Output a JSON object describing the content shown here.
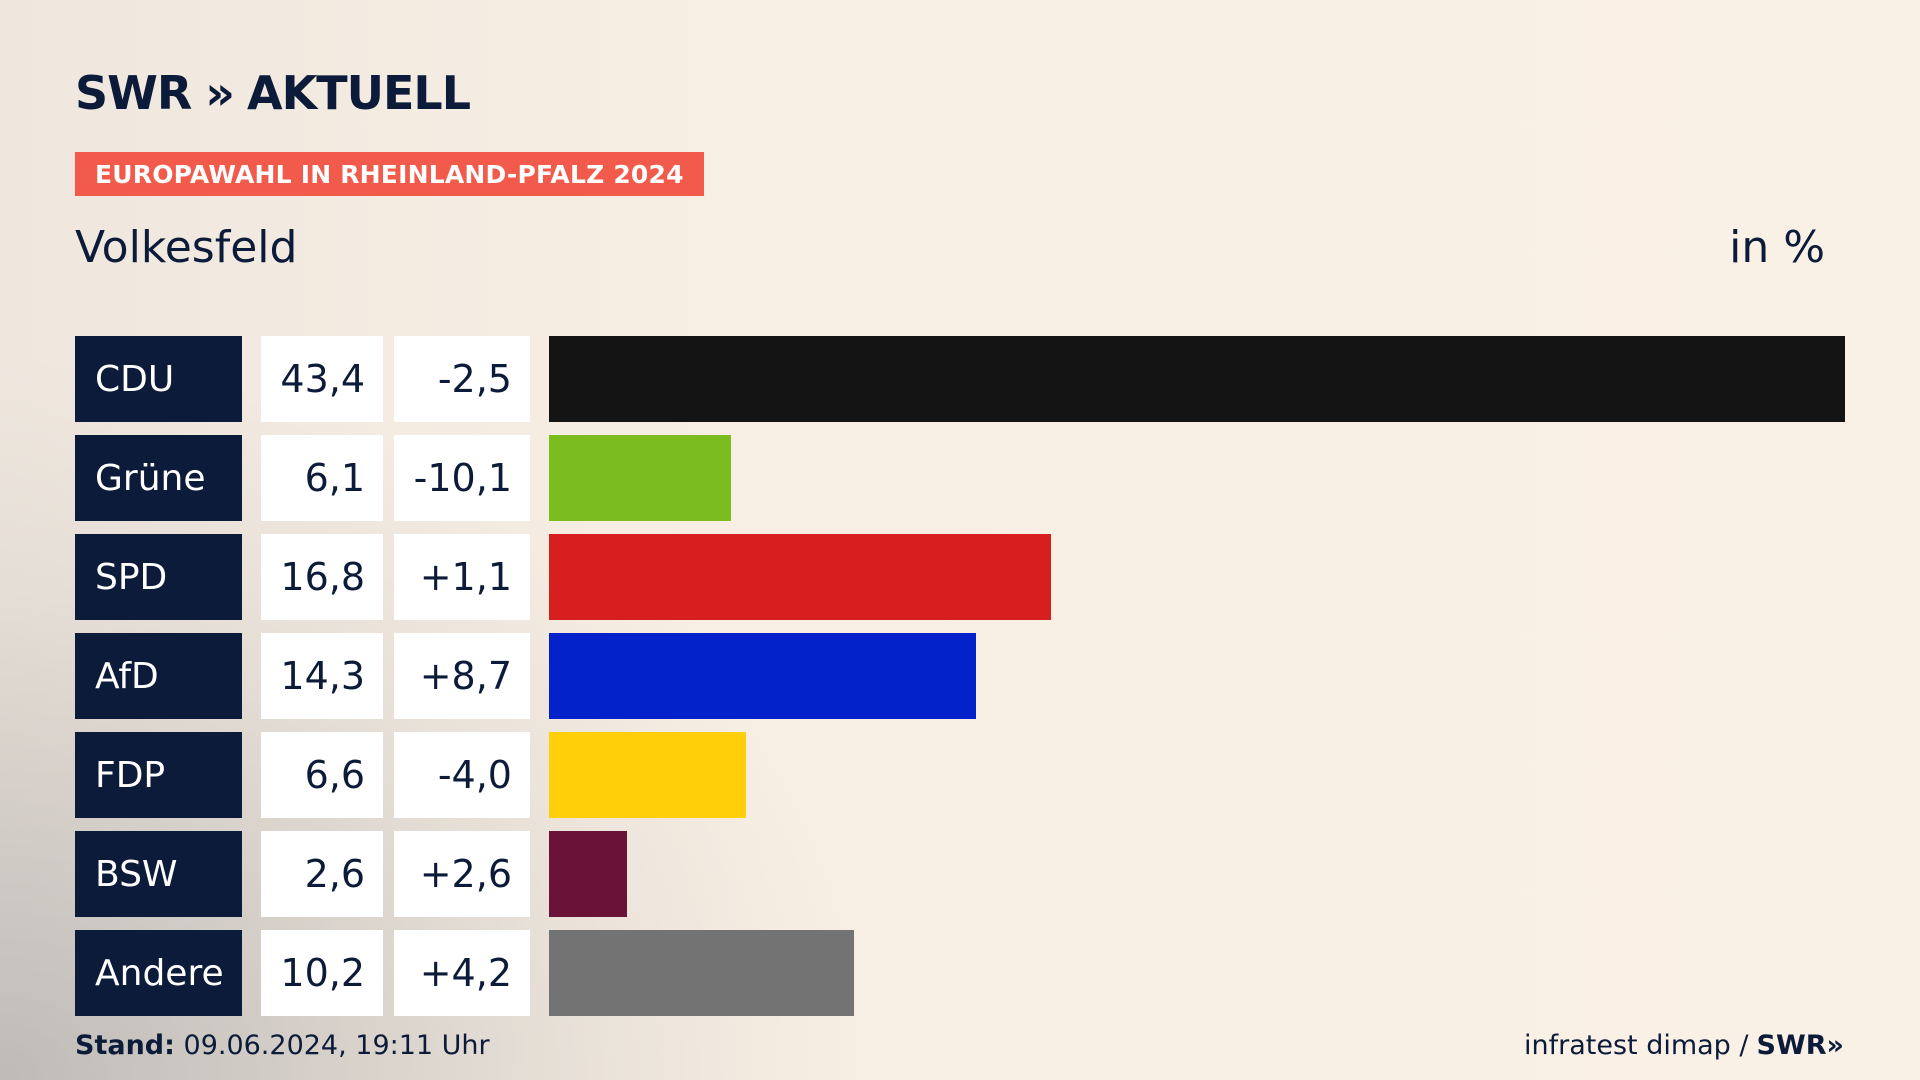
{
  "header": {
    "logo_text": "SWR",
    "logo_chevron": "»",
    "logo_suffix": "AKTUELL",
    "tag": "EUROPAWAHL IN RHEINLAND-PFALZ 2024"
  },
  "chart_data": {
    "type": "bar",
    "title": "Volkesfeld",
    "unit_label": "in %",
    "categories": [
      "CDU",
      "Grüne",
      "SPD",
      "AfD",
      "FDP",
      "BSW",
      "Andere"
    ],
    "values": [
      43.4,
      6.1,
      16.8,
      14.3,
      6.6,
      2.6,
      10.2
    ],
    "values_text": [
      "43,4",
      "6,1",
      "16,8",
      "14,3",
      "6,6",
      "2,6",
      "10,2"
    ],
    "diffs_text": [
      "-2,5",
      "-10,1",
      "+1,1",
      "+8,7",
      "-4,0",
      "+2,6",
      "+4,2"
    ],
    "colors": [
      "#141414",
      "#7bbd1e",
      "#d71f1f",
      "#0322c9",
      "#ffcf09",
      "#6b1238",
      "#737373"
    ],
    "xlim": [
      0,
      43.4
    ]
  },
  "footer": {
    "stand_label": "Stand:",
    "stand_value": "09.06.2024, 19:11 Uhr",
    "source": "infratest dimap /",
    "source_logo": "SWR",
    "source_chevron": "»"
  }
}
